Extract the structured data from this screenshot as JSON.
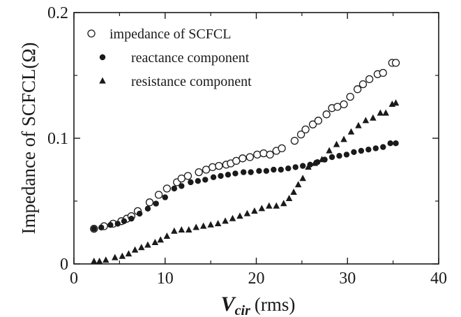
{
  "chart_data": {
    "type": "scatter",
    "xlim": [
      0,
      40
    ],
    "ylim": [
      0,
      0.2
    ],
    "x_ticks": [
      "0",
      "10",
      "20",
      "30",
      "40"
    ],
    "y_ticks": [
      "0",
      "0.1",
      "0.2"
    ],
    "xlabel_main": "V",
    "xlabel_sub": "cir",
    "xlabel_unit": "(rms)",
    "ylabel": "Impedance of SCFCL(Ω)",
    "legend_position": "top-left",
    "grid": false,
    "colors": {
      "ink": "#1a1a1a",
      "open_marker_fill": "#ffffff"
    },
    "series": [
      {
        "name": "impedance of SCFCL",
        "marker": "open-circle",
        "points": [
          [
            2.2,
            0.028
          ],
          [
            3.3,
            0.03
          ],
          [
            4.3,
            0.032
          ],
          [
            5.2,
            0.034
          ],
          [
            5.8,
            0.036
          ],
          [
            6.3,
            0.038
          ],
          [
            7.0,
            0.042
          ],
          [
            8.3,
            0.049
          ],
          [
            9.3,
            0.055
          ],
          [
            10.2,
            0.06
          ],
          [
            11.3,
            0.065
          ],
          [
            11.8,
            0.068
          ],
          [
            12.5,
            0.07
          ],
          [
            13.7,
            0.073
          ],
          [
            14.5,
            0.075
          ],
          [
            15.2,
            0.077
          ],
          [
            15.9,
            0.078
          ],
          [
            16.7,
            0.079
          ],
          [
            17.2,
            0.08
          ],
          [
            17.8,
            0.082
          ],
          [
            18.5,
            0.084
          ],
          [
            19.3,
            0.085
          ],
          [
            20.1,
            0.087
          ],
          [
            20.8,
            0.088
          ],
          [
            21.5,
            0.087
          ],
          [
            22.2,
            0.09
          ],
          [
            22.8,
            0.092
          ],
          [
            24.2,
            0.098
          ],
          [
            24.9,
            0.103
          ],
          [
            25.4,
            0.107
          ],
          [
            26.2,
            0.111
          ],
          [
            26.8,
            0.114
          ],
          [
            27.7,
            0.119
          ],
          [
            28.3,
            0.124
          ],
          [
            28.9,
            0.125
          ],
          [
            29.6,
            0.127
          ],
          [
            30.3,
            0.133
          ],
          [
            31.1,
            0.139
          ],
          [
            31.7,
            0.143
          ],
          [
            32.4,
            0.147
          ],
          [
            33.3,
            0.151
          ],
          [
            33.9,
            0.152
          ],
          [
            34.9,
            0.16
          ],
          [
            35.3,
            0.16
          ]
        ]
      },
      {
        "name": "reactance component",
        "marker": "filled-circle",
        "points": [
          [
            2.2,
            0.028
          ],
          [
            3.0,
            0.029
          ],
          [
            4.0,
            0.031
          ],
          [
            4.8,
            0.032
          ],
          [
            5.5,
            0.034
          ],
          [
            6.3,
            0.036
          ],
          [
            7.2,
            0.04
          ],
          [
            8.1,
            0.044
          ],
          [
            9.0,
            0.048
          ],
          [
            10.0,
            0.053
          ],
          [
            11.0,
            0.06
          ],
          [
            11.8,
            0.062
          ],
          [
            12.8,
            0.065
          ],
          [
            13.6,
            0.066
          ],
          [
            14.4,
            0.067
          ],
          [
            15.3,
            0.069
          ],
          [
            16.1,
            0.07
          ],
          [
            16.9,
            0.071
          ],
          [
            17.7,
            0.072
          ],
          [
            18.6,
            0.073
          ],
          [
            19.4,
            0.073
          ],
          [
            20.3,
            0.074
          ],
          [
            21.1,
            0.074
          ],
          [
            21.9,
            0.075
          ],
          [
            22.7,
            0.075
          ],
          [
            23.5,
            0.076
          ],
          [
            24.3,
            0.077
          ],
          [
            25.1,
            0.078
          ],
          [
            25.9,
            0.079
          ],
          [
            26.7,
            0.081
          ],
          [
            27.5,
            0.083
          ],
          [
            28.3,
            0.085
          ],
          [
            29.1,
            0.086
          ],
          [
            29.9,
            0.087
          ],
          [
            30.7,
            0.089
          ],
          [
            31.5,
            0.09
          ],
          [
            32.3,
            0.091
          ],
          [
            33.1,
            0.092
          ],
          [
            33.9,
            0.093
          ],
          [
            34.7,
            0.096
          ],
          [
            35.3,
            0.096
          ]
        ]
      },
      {
        "name": "resistance component",
        "marker": "filled-triangle",
        "points": [
          [
            2.2,
            0.002
          ],
          [
            2.8,
            0.002
          ],
          [
            3.5,
            0.003
          ],
          [
            4.5,
            0.005
          ],
          [
            5.3,
            0.006
          ],
          [
            6.0,
            0.008
          ],
          [
            6.7,
            0.011
          ],
          [
            7.4,
            0.013
          ],
          [
            8.1,
            0.015
          ],
          [
            8.9,
            0.017
          ],
          [
            9.5,
            0.019
          ],
          [
            10.2,
            0.022
          ],
          [
            11.0,
            0.026
          ],
          [
            11.8,
            0.027
          ],
          [
            12.6,
            0.027
          ],
          [
            13.4,
            0.029
          ],
          [
            14.2,
            0.03
          ],
          [
            15.0,
            0.031
          ],
          [
            15.8,
            0.032
          ],
          [
            16.6,
            0.034
          ],
          [
            17.4,
            0.036
          ],
          [
            18.2,
            0.038
          ],
          [
            19.0,
            0.04
          ],
          [
            19.8,
            0.042
          ],
          [
            20.6,
            0.044
          ],
          [
            21.4,
            0.046
          ],
          [
            22.2,
            0.046
          ],
          [
            23.0,
            0.048
          ],
          [
            23.6,
            0.052
          ],
          [
            24.1,
            0.057
          ],
          [
            24.6,
            0.063
          ],
          [
            25.1,
            0.068
          ],
          [
            25.7,
            0.077
          ],
          [
            26.4,
            0.08
          ],
          [
            27.2,
            0.083
          ],
          [
            28.0,
            0.09
          ],
          [
            28.8,
            0.095
          ],
          [
            29.6,
            0.099
          ],
          [
            30.4,
            0.105
          ],
          [
            31.2,
            0.11
          ],
          [
            32.0,
            0.114
          ],
          [
            32.8,
            0.116
          ],
          [
            33.6,
            0.12
          ],
          [
            34.2,
            0.12
          ],
          [
            34.9,
            0.127
          ],
          [
            35.3,
            0.128
          ]
        ]
      }
    ]
  }
}
